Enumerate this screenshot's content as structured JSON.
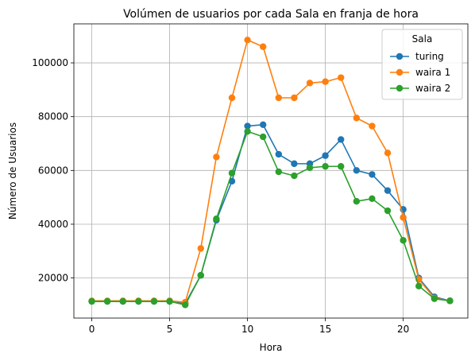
{
  "chart_data": {
    "type": "line",
    "title": "Volúmen de usuarios por cada Sala en franja de hora",
    "xlabel": "Hora",
    "ylabel": "Número de Usuarios",
    "xlim": [
      -1.15,
      24.15
    ],
    "ylim": [
      5100,
      114500
    ],
    "xticks": [
      0,
      5,
      10,
      15,
      20
    ],
    "yticks": [
      20000,
      40000,
      60000,
      80000,
      100000
    ],
    "grid": true,
    "legend": {
      "title": "Sala",
      "placement": "top-right"
    },
    "x": [
      0,
      1,
      2,
      3,
      4,
      5,
      6,
      7,
      8,
      9,
      10,
      11,
      12,
      13,
      14,
      15,
      16,
      17,
      18,
      19,
      20,
      21,
      22,
      23
    ],
    "series": [
      {
        "name": "turing",
        "color": "#1f77b4",
        "values": [
          11300,
          11300,
          11300,
          11300,
          11300,
          11300,
          10500,
          21000,
          41500,
          56000,
          76500,
          77000,
          66000,
          62500,
          62500,
          65500,
          71500,
          60000,
          58500,
          52500,
          45500,
          20000,
          13000,
          11500
        ]
      },
      {
        "name": "waira 1",
        "color": "#ff7f0e",
        "values": [
          11500,
          11500,
          11500,
          11500,
          11500,
          11500,
          11000,
          31000,
          65000,
          87000,
          108500,
          106000,
          87000,
          87000,
          92500,
          93000,
          94500,
          79500,
          76500,
          66500,
          42500,
          19500,
          12500,
          11500
        ]
      },
      {
        "name": "waira 2",
        "color": "#2ca02c",
        "values": [
          11300,
          11300,
          11300,
          11300,
          11300,
          11300,
          10000,
          21000,
          42000,
          59000,
          74500,
          72500,
          59500,
          58000,
          61000,
          61500,
          61500,
          48500,
          49500,
          45000,
          34000,
          17000,
          12300,
          11500
        ]
      }
    ]
  }
}
